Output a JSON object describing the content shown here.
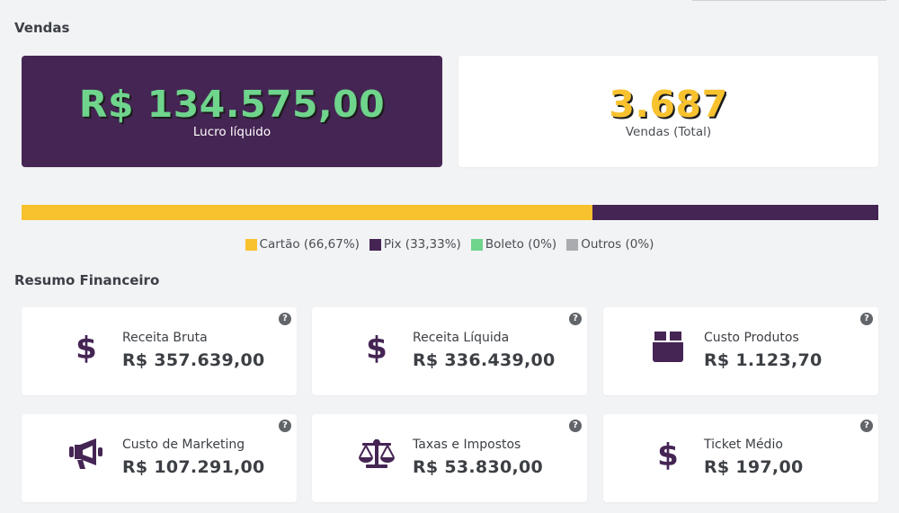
{
  "sections": {
    "vendas_title": "Vendas",
    "resumo_title": "Resumo Financeiro"
  },
  "kpis": {
    "profit": {
      "value": "R$ 134.575,00",
      "label": "Lucro líquido",
      "color": "#6fd48c",
      "bg": "#452554"
    },
    "sales": {
      "value": "3.687",
      "label": "Vendas (Total)",
      "color": "#f8c22f",
      "bg": "#ffffff"
    }
  },
  "payment_methods": [
    {
      "label": "Cartão (66,67%)",
      "share": 66.67,
      "color": "#f8c22f"
    },
    {
      "label": "Pix (33,33%)",
      "share": 33.33,
      "color": "#452554"
    },
    {
      "label": "Boleto (0%)",
      "share": 0,
      "color": "#6fd48c"
    },
    {
      "label": "Outros (0%)",
      "share": 0,
      "color": "#a9abaf"
    }
  ],
  "cards": [
    {
      "label": "Receita Bruta",
      "value": "R$ 357.639,00",
      "icon": "dollar-icon"
    },
    {
      "label": "Receita Líquida",
      "value": "R$ 336.439,00",
      "icon": "dollar-icon"
    },
    {
      "label": "Custo Produtos",
      "value": "R$ 1.123,70",
      "icon": "box-icon"
    },
    {
      "label": "Custo de Marketing",
      "value": "R$ 107.291,00",
      "icon": "megaphone-icon"
    },
    {
      "label": "Taxas e Impostos",
      "value": "R$ 53.830,00",
      "icon": "scale-icon"
    },
    {
      "label": "Ticket Médio",
      "value": "R$ 197,00",
      "icon": "dollar-icon"
    }
  ],
  "help_glyph": "?",
  "icon_color": "#452554"
}
